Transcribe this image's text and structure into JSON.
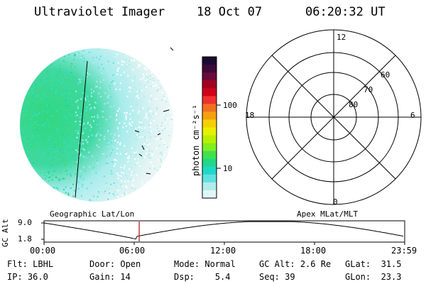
{
  "header": {
    "title": "Ultraviolet Imager",
    "date": "18 Oct 07",
    "time": "06:20:32 UT"
  },
  "colorbar": {
    "unit_label": "photon cm⁻²s⁻¹",
    "tick_labels": [
      "100",
      "10"
    ],
    "colors": [
      "#1a0a33",
      "#3a0a3a",
      "#6a0a3a",
      "#a00020",
      "#d00018",
      "#f03030",
      "#f07020",
      "#f5a010",
      "#f5d000",
      "#e8f000",
      "#b8f000",
      "#80ee20",
      "#40e050",
      "#20d888",
      "#20d8c8",
      "#60e0e0",
      "#b0ecec",
      "#e0f6f6"
    ]
  },
  "left_panel": {
    "label": "Geographic Lat/Lon"
  },
  "right_panel": {
    "label": "Apex MLat/MLT",
    "mlt_labels": {
      "top": "12",
      "left": "18",
      "right": "6",
      "bottom": "0"
    },
    "lat_labels": [
      "60",
      "70",
      "80"
    ]
  },
  "timeline": {
    "y_label": "GC Alt",
    "y_ticks": [
      "9.0",
      "1.8"
    ],
    "x_ticks": [
      "00:00",
      "06:00",
      "12:00",
      "18:00",
      "23:59"
    ],
    "current_time": "06:20",
    "marker_color": "#b22222"
  },
  "status": {
    "row1": [
      {
        "key": "Flt:",
        "value": "LBHL"
      },
      {
        "key": "Door:",
        "value": "Open"
      },
      {
        "key": "Mode:",
        "value": "Normal"
      },
      {
        "key": "GC Alt:",
        "value": "2.6 Re"
      },
      {
        "key": "GLat:",
        "value": "31.5"
      }
    ],
    "row2": [
      {
        "key": "IP:",
        "value": "36.0"
      },
      {
        "key": "Gain:",
        "value": "14"
      },
      {
        "key": "Dsp:",
        "value": "5.4"
      },
      {
        "key": "Seq:",
        "value": "39"
      },
      {
        "key": "GLon:",
        "value": "23.3"
      }
    ]
  }
}
